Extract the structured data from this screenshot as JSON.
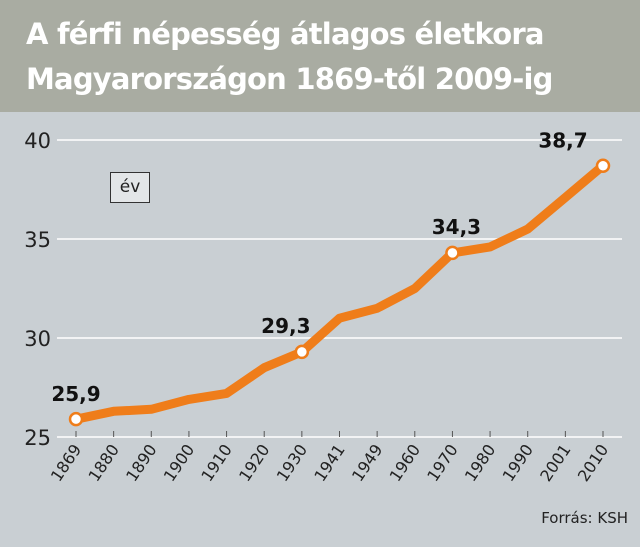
{
  "title_lines": [
    "A férfi népesség átlagos életkora",
    "Magyarországon 1869-től 2009-ig"
  ],
  "unit_label": "év",
  "source": "Forrás: KSH",
  "colors": {
    "line": "#ef7d1a",
    "header_bg": "#a9aca2",
    "plot_bg": "#c9cfd3",
    "grid": "#ffffff"
  },
  "chart_data": {
    "type": "line",
    "title": "A férfi népesség átlagos életkora Magyarországon 1869-től 2009-ig",
    "ylabel": "év",
    "xlabel": "",
    "ylim": [
      25,
      40
    ],
    "yticks": [
      25,
      30,
      35,
      40
    ],
    "grid": true,
    "categories": [
      "1869",
      "1880",
      "1890",
      "1900",
      "1910",
      "1920",
      "1930",
      "1941",
      "1949",
      "1960",
      "1970",
      "1980",
      "1990",
      "2001",
      "2010"
    ],
    "series": [
      {
        "values": [
          25.9,
          26.3,
          26.4,
          26.9,
          27.2,
          28.5,
          29.3,
          31.0,
          31.5,
          32.5,
          34.3,
          34.6,
          35.5,
          37.1,
          38.7
        ]
      }
    ],
    "labeled_points": [
      {
        "category": "1869",
        "label": "25,9"
      },
      {
        "category": "1930",
        "label": "29,3"
      },
      {
        "category": "1970",
        "label": "34,3"
      },
      {
        "category": "2010",
        "label": "38,7"
      }
    ]
  }
}
